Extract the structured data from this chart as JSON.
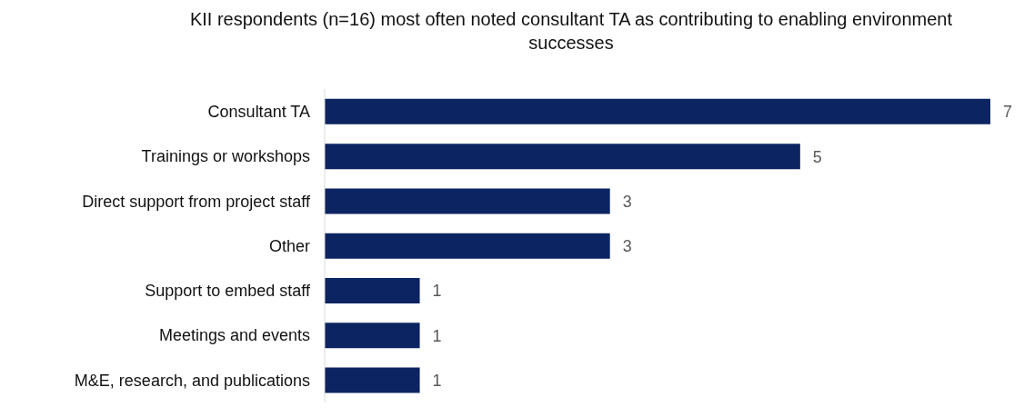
{
  "chart_data": {
    "type": "bar",
    "orientation": "horizontal",
    "title": "KII respondents (n=16) most often noted consultant TA as contributing to enabling environment successes",
    "categories": [
      "Consultant TA",
      "Trainings or workshops",
      "Direct support from project staff",
      "Other",
      "Support to embed staff",
      "Meetings and events",
      "M&E, research, and publications"
    ],
    "values": [
      7,
      5,
      3,
      3,
      1,
      1,
      1
    ],
    "color": "#0c2461",
    "data_labels": true,
    "grid": false,
    "legend": false
  }
}
